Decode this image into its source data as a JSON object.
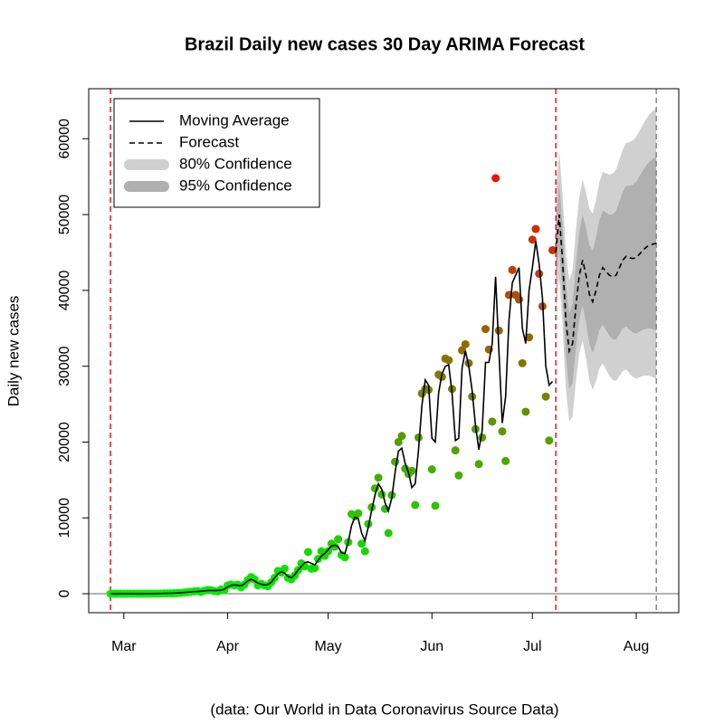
{
  "chart_data": {
    "type": "line",
    "title": "Brazil Daily new cases 30 Day ARIMA Forecast",
    "ylabel": "Daily new cases",
    "caption": "(data: Our World in Data Coronavirus Source Data)",
    "xlim": [
      -10.5,
      165.7
    ],
    "ylim": [
      -2500,
      66600
    ],
    "xticks": [
      {
        "value": 0,
        "label": "Mar"
      },
      {
        "value": 31,
        "label": "Apr"
      },
      {
        "value": 61,
        "label": "May"
      },
      {
        "value": 92,
        "label": "Jun"
      },
      {
        "value": 122,
        "label": "Jul"
      },
      {
        "value": 153,
        "label": "Aug"
      }
    ],
    "yticks": [
      0,
      10000,
      20000,
      30000,
      40000,
      50000,
      60000
    ],
    "hline": {
      "y": 0,
      "color": "#666666"
    },
    "vlines": [
      {
        "x": -4,
        "color": "#e31a1c"
      },
      {
        "x": 129,
        "color": "#e31a1c"
      },
      {
        "x": 159,
        "color": "#888888"
      }
    ],
    "legend": "top-left",
    "x": [
      -4,
      -3,
      -2,
      -1,
      0,
      1,
      2,
      3,
      4,
      5,
      6,
      7,
      8,
      9,
      10,
      11,
      12,
      13,
      14,
      15,
      16,
      17,
      18,
      19,
      20,
      21,
      22,
      23,
      24,
      25,
      26,
      27,
      28,
      29,
      30,
      31,
      32,
      33,
      34,
      35,
      36,
      37,
      38,
      39,
      40,
      41,
      42,
      43,
      44,
      45,
      46,
      47,
      48,
      49,
      50,
      51,
      52,
      53,
      54,
      55,
      56,
      57,
      58,
      59,
      60,
      61,
      62,
      63,
      64,
      65,
      66,
      67,
      68,
      69,
      70,
      71,
      72,
      73,
      74,
      75,
      76,
      77,
      78,
      79,
      80,
      81,
      82,
      83,
      84,
      85,
      86,
      87,
      88,
      89,
      90,
      91,
      92,
      93,
      94,
      95,
      96,
      97,
      98,
      99,
      100,
      101,
      102,
      103,
      104,
      105,
      106,
      107,
      108,
      109,
      110,
      111,
      112,
      113,
      114,
      115,
      116,
      117,
      118,
      119,
      120,
      121,
      122,
      123,
      124,
      125,
      126,
      127,
      128
    ],
    "points": {
      "low_color": "#00ee00",
      "high_color": "#ee1100",
      "values": [
        1,
        0,
        0,
        0,
        0,
        1,
        0,
        0,
        0,
        1,
        0,
        4,
        5,
        6,
        10,
        20,
        30,
        40,
        50,
        60,
        80,
        100,
        150,
        200,
        250,
        300,
        350,
        230,
        400,
        500,
        490,
        350,
        300,
        560,
        480,
        1100,
        1200,
        1100,
        1200,
        850,
        1200,
        1800,
        2200,
        1900,
        1100,
        1300,
        1100,
        1000,
        1500,
        2100,
        3000,
        2800,
        3300,
        2100,
        1900,
        2400,
        3100,
        4000,
        3600,
        5500,
        3300,
        3400,
        4600,
        5600,
        5000,
        5600,
        6600,
        6200,
        7200,
        5100,
        4800,
        6800,
        10500,
        10200,
        10600,
        6600,
        5600,
        9200,
        11400,
        13900,
        15300,
        13100,
        11200,
        8000,
        13000,
        17400,
        20000,
        20800,
        16500,
        15800,
        16200,
        11700,
        20600,
        26400,
        27000,
        26900,
        16400,
        11600,
        28900,
        28600,
        31000,
        30800,
        27000,
        18900,
        15600,
        32100,
        32900,
        30400,
        26000,
        21700,
        17100,
        20600,
        34900,
        32200,
        22700,
        54800,
        34700,
        21400,
        17500,
        39400,
        42700,
        39400,
        38800,
        30400,
        24000,
        33800,
        46700,
        48100,
        42200,
        37900,
        26000,
        20200,
        45300
      ]
    },
    "series": [
      {
        "name": "Moving Average",
        "color": "#000000",
        "values": [
          0,
          0,
          0,
          0,
          0,
          0,
          0,
          0,
          0,
          0,
          0,
          0,
          0,
          0,
          20,
          30,
          40,
          50,
          60,
          80,
          100,
          130,
          170,
          200,
          240,
          280,
          300,
          330,
          380,
          430,
          440,
          420,
          430,
          480,
          600,
          900,
          1100,
          1150,
          1100,
          1050,
          1300,
          1700,
          1900,
          1700,
          1400,
          1250,
          1150,
          1200,
          1500,
          2100,
          2600,
          2900,
          2700,
          2300,
          2100,
          2500,
          3100,
          3600,
          4100,
          4200,
          4000,
          3800,
          4400,
          5000,
          5300,
          5800,
          6300,
          6400,
          6200,
          5400,
          5300,
          6800,
          9000,
          10100,
          9900,
          8000,
          7000,
          8800,
          11000,
          13000,
          14500,
          13800,
          12000,
          10900,
          12600,
          16000,
          18800,
          19200,
          17200,
          16000,
          14000,
          14500,
          19000,
          24800,
          28200,
          27500,
          20500,
          20000,
          26500,
          29000,
          30000,
          30200,
          26500,
          20200,
          20500,
          29800,
          32000,
          30000,
          26800,
          22200,
          19000,
          21500,
          30500,
          30500,
          33000,
          41800,
          32000,
          22500,
          26000,
          36000,
          41000,
          42000,
          43000,
          35000,
          33000,
          40000,
          43000,
          46500,
          43500,
          39000,
          30000,
          27500,
          28000
        ]
      }
    ],
    "forecast": {
      "name": "Forecast",
      "color": "#000000",
      "x": [
        129,
        130,
        131,
        132,
        133,
        134,
        135,
        136,
        137,
        138,
        139,
        140,
        141,
        142,
        143,
        144,
        145,
        146,
        147,
        148,
        149,
        150,
        151,
        152,
        153,
        154,
        155,
        156,
        157,
        158,
        159
      ],
      "values": [
        45000,
        50000,
        44000,
        36000,
        32000,
        33000,
        38000,
        42000,
        44000,
        42000,
        39500,
        38500,
        40000,
        42000,
        43000,
        42500,
        42000,
        41800,
        42000,
        43000,
        44000,
        44500,
        44300,
        44200,
        44300,
        44800,
        45300,
        45700,
        46000,
        46100,
        46200
      ]
    },
    "bands": [
      {
        "name": "80% Confidence",
        "color": "#d0d0d0",
        "lower": [
          37000,
          41670,
          35340,
          27010,
          22680,
          23350,
          28020,
          31690,
          33360,
          31030,
          28200,
          26870,
          28040,
          29710,
          30380,
          29550,
          28720,
          28190,
          28060,
          28730,
          29400,
          29570,
          29040,
          28610,
          28380,
          28550,
          28720,
          28790,
          28760,
          28530,
          28300
        ],
        "upper": [
          53000,
          58330,
          52660,
          44990,
          41320,
          42650,
          47980,
          52310,
          54640,
          52970,
          50800,
          50130,
          51960,
          54290,
          55620,
          55450,
          55280,
          55410,
          55940,
          57270,
          58600,
          59430,
          59560,
          59790,
          60220,
          61050,
          61880,
          62610,
          63240,
          63670,
          64100
        ]
      },
      {
        "name": "95% Confidence",
        "color": "#b0b0b0",
        "lower": [
          41000,
          45750,
          39500,
          31250,
          27000,
          27750,
          32500,
          36250,
          38000,
          35750,
          33000,
          31750,
          33000,
          34750,
          35500,
          34750,
          34000,
          33550,
          33500,
          34250,
          35000,
          35250,
          34800,
          34450,
          34300,
          34550,
          34800,
          34950,
          35000,
          34850,
          34700
        ],
        "upper": [
          49000,
          54250,
          48500,
          40750,
          37000,
          38250,
          43500,
          47750,
          50000,
          48250,
          46000,
          45250,
          47000,
          49250,
          50500,
          50250,
          50000,
          50050,
          50500,
          51750,
          53000,
          53750,
          53800,
          53950,
          54300,
          55050,
          55800,
          56450,
          57000,
          57350,
          57700
        ]
      }
    ]
  }
}
